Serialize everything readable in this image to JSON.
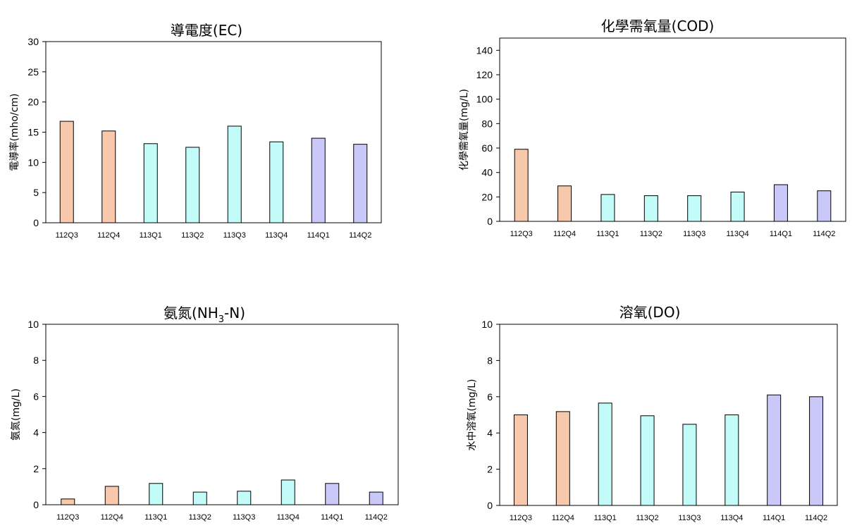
{
  "chart_data": [
    {
      "type": "bar",
      "title": "導電度(EC)",
      "ylabel": "電導率(mho/cm)",
      "ylim": [
        0,
        30
      ],
      "yticks": [
        0,
        5,
        10,
        15,
        20,
        25,
        30
      ],
      "categories": [
        "112Q3",
        "112Q4",
        "113Q1",
        "113Q2",
        "113Q3",
        "113Q4",
        "114Q1",
        "114Q2"
      ],
      "values": [
        16.8,
        15.2,
        13.1,
        12.5,
        16.0,
        13.4,
        14.0,
        13.0
      ],
      "bar_colors": [
        "#f8c8ad",
        "#f8c8ad",
        "#c2fbf8",
        "#c2fbf8",
        "#c2fbf8",
        "#c2fbf8",
        "#c9c8f8",
        "#c9c8f8"
      ]
    },
    {
      "type": "bar",
      "title": "化學需氧量(COD)",
      "ylabel": "化學需氧量(mg/L)",
      "ylim": [
        0,
        150
      ],
      "yticks": [
        0,
        20,
        40,
        60,
        80,
        100,
        120,
        140
      ],
      "categories": [
        "112Q3",
        "112Q4",
        "113Q1",
        "113Q2",
        "113Q3",
        "113Q4",
        "114Q1",
        "114Q2"
      ],
      "values": [
        59,
        29,
        22,
        21,
        21,
        24,
        30,
        25
      ],
      "bar_colors": [
        "#f8c8ad",
        "#f8c8ad",
        "#c2fbf8",
        "#c2fbf8",
        "#c2fbf8",
        "#c2fbf8",
        "#c9c8f8",
        "#c9c8f8"
      ]
    },
    {
      "type": "bar",
      "title": "氨氮(NH",
      "title_sub": "3",
      "title_end": "-N)",
      "ylabel": "氨氮(mg/L)",
      "ylim": [
        0,
        10
      ],
      "yticks": [
        0,
        2,
        4,
        6,
        8,
        10
      ],
      "categories": [
        "112Q3",
        "112Q4",
        "113Q1",
        "113Q2",
        "113Q3",
        "113Q4",
        "114Q1",
        "114Q2"
      ],
      "values": [
        0.32,
        1.02,
        1.18,
        0.7,
        0.75,
        1.37,
        1.18,
        0.7
      ],
      "bar_colors": [
        "#f8c8ad",
        "#f8c8ad",
        "#c2fbf8",
        "#c2fbf8",
        "#c2fbf8",
        "#c2fbf8",
        "#c9c8f8",
        "#c9c8f8"
      ]
    },
    {
      "type": "bar",
      "title": "溶氧(DO)",
      "ylabel": "水中溶氧(mg/L)",
      "ylim": [
        0,
        10
      ],
      "yticks": [
        0,
        2,
        4,
        6,
        8,
        10
      ],
      "categories": [
        "112Q3",
        "112Q4",
        "113Q1",
        "113Q2",
        "113Q3",
        "113Q4",
        "114Q1",
        "114Q2"
      ],
      "values": [
        5.0,
        5.18,
        5.65,
        4.95,
        4.48,
        5.0,
        6.1,
        6.0
      ],
      "bar_colors": [
        "#f8c8ad",
        "#f8c8ad",
        "#c2fbf8",
        "#c2fbf8",
        "#c2fbf8",
        "#c2fbf8",
        "#c9c8f8",
        "#c9c8f8"
      ]
    }
  ]
}
